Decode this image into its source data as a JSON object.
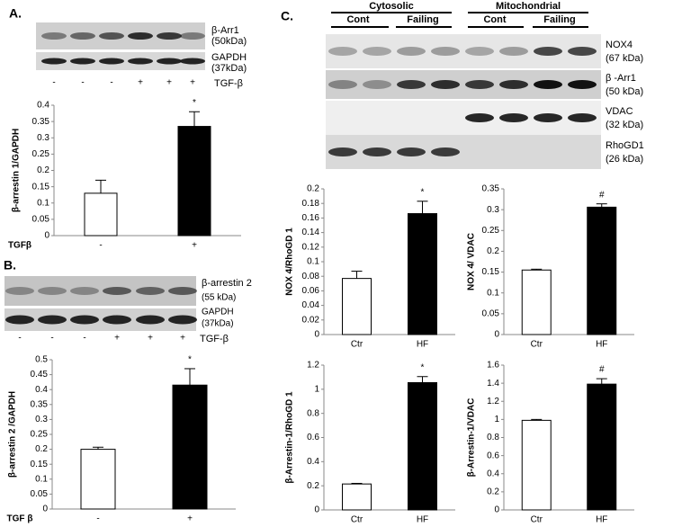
{
  "panels": {
    "a": "A.",
    "b": "B.",
    "c": "C."
  },
  "blots": {
    "a": {
      "rows": [
        [
          "β-Arr1",
          "(50kDa)"
        ],
        [
          "GAPDH",
          "(37kDa)"
        ]
      ],
      "lanes": [
        "-",
        "-",
        "-",
        "+",
        "+",
        "+"
      ],
      "treatment": "TGF-β"
    },
    "b": {
      "rows": [
        [
          "β-arrestin 2",
          "(55 kDa)"
        ],
        [
          "GAPDH",
          "(37kDa)"
        ]
      ],
      "lanes": [
        "-",
        "-",
        "-",
        "+",
        "+",
        "+"
      ],
      "treatment": "TGF-β"
    },
    "c": {
      "fractions": [
        "Cytosolic",
        "Mitochondrial"
      ],
      "groups": [
        "Cont",
        "Failing",
        "Cont",
        "Failing"
      ],
      "rows": [
        [
          "NOX4",
          "(67 kDa)"
        ],
        [
          "β -Arr1",
          "(50 kDa)"
        ],
        [
          "VDAC",
          "(32 kDa)"
        ],
        [
          "RhoGD1",
          "(26 kDa)"
        ]
      ]
    }
  },
  "chart_data": [
    {
      "type": "bar",
      "ylabel": "β-arrestin 1/GAPDH",
      "xlabel": "TGFβ",
      "categories": [
        "-",
        "+"
      ],
      "values": [
        0.13,
        0.335
      ],
      "errors": [
        0.04,
        0.045
      ],
      "colors": [
        "#ffffff",
        "#000000"
      ],
      "ylim": [
        0,
        0.4
      ],
      "yticks": [
        0,
        0.05,
        0.1,
        0.15,
        0.2,
        0.25,
        0.3,
        0.35,
        0.4
      ],
      "annotation": "*"
    },
    {
      "type": "bar",
      "ylabel": "β-arrestin 2 /GAPDH",
      "xlabel": "TGF β",
      "categories": [
        "-",
        "+"
      ],
      "values": [
        0.2,
        0.415
      ],
      "errors": [
        0.007,
        0.055
      ],
      "colors": [
        "#ffffff",
        "#000000"
      ],
      "ylim": [
        0,
        0.5
      ],
      "yticks": [
        0,
        0.05,
        0.1,
        0.15,
        0.2,
        0.25,
        0.3,
        0.35,
        0.4,
        0.45,
        0.5
      ],
      "annotation": "*"
    },
    {
      "type": "bar",
      "ylabel": "NOX 4/RhoGD 1",
      "categories": [
        "Ctr",
        "HF"
      ],
      "values": [
        0.077,
        0.166
      ],
      "errors": [
        0.01,
        0.017
      ],
      "colors": [
        "#ffffff",
        "#000000"
      ],
      "ylim": [
        0,
        0.2
      ],
      "yticks": [
        0,
        0.02,
        0.04,
        0.06,
        0.08,
        0.1,
        0.12,
        0.14,
        0.16,
        0.18,
        0.2
      ],
      "annotation": "*"
    },
    {
      "type": "bar",
      "ylabel": "NOX 4/ VDAC",
      "categories": [
        "Ctr",
        "HF"
      ],
      "values": [
        0.155,
        0.306
      ],
      "errors": [
        0.002,
        0.008
      ],
      "colors": [
        "#ffffff",
        "#000000"
      ],
      "ylim": [
        0,
        0.35
      ],
      "yticks": [
        0,
        0.05,
        0.1,
        0.15,
        0.2,
        0.25,
        0.3,
        0.35
      ],
      "annotation": "#"
    },
    {
      "type": "bar",
      "ylabel": "β-Arrestin-1/RhoGD 1",
      "categories": [
        "Ctr",
        "HF"
      ],
      "values": [
        0.215,
        1.055
      ],
      "errors": [
        0.005,
        0.05
      ],
      "colors": [
        "#ffffff",
        "#000000"
      ],
      "ylim": [
        0,
        1.2
      ],
      "yticks": [
        0,
        0.2,
        0.4,
        0.6,
        0.8,
        1,
        1.2
      ],
      "annotation": "*"
    },
    {
      "type": "bar",
      "ylabel": "β-Arrestin-1/VDAC",
      "categories": [
        "Ctr",
        "HF"
      ],
      "values": [
        0.99,
        1.39
      ],
      "errors": [
        0.01,
        0.06
      ],
      "colors": [
        "#ffffff",
        "#000000"
      ],
      "ylim": [
        0,
        1.6
      ],
      "yticks": [
        0,
        0.2,
        0.4,
        0.6,
        0.8,
        1,
        1.2,
        1.4,
        1.6
      ],
      "annotation": "#"
    }
  ]
}
